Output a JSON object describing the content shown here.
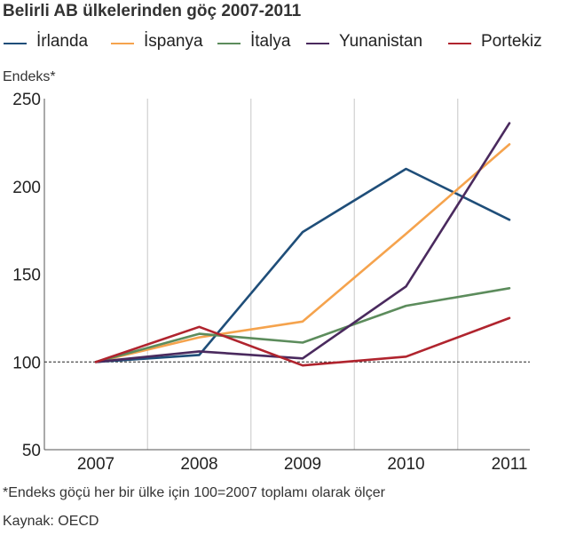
{
  "chart_data": {
    "type": "line",
    "title": "Belirli AB ülkelerinden göç 2007-2011",
    "ylabel": "Endeks*",
    "xlabel": "",
    "x": [
      "2007",
      "2008",
      "2009",
      "2010",
      "2011"
    ],
    "yticks": [
      "250",
      "200",
      "150",
      "100",
      "50"
    ],
    "ylim": [
      50,
      250
    ],
    "reference_line": 100,
    "grid": "vertical",
    "legend_position": "top",
    "series": [
      {
        "name": "İrlanda",
        "color": "#1f4e79",
        "values": [
          100,
          104,
          174,
          210,
          181
        ]
      },
      {
        "name": "İspanya",
        "color": "#f5a34d",
        "values": [
          100,
          114,
          123,
          173,
          224
        ]
      },
      {
        "name": "İtalya",
        "color": "#5c8c5c",
        "values": [
          100,
          116,
          111,
          132,
          142
        ]
      },
      {
        "name": "Yunanistan",
        "color": "#4a2a5e",
        "values": [
          100,
          106,
          102,
          143,
          236
        ]
      },
      {
        "name": "Portekiz",
        "color": "#b0242e",
        "values": [
          100,
          120,
          98,
          103,
          125
        ]
      }
    ],
    "footnote": "*Endeks göçü her bir ülke için 100=2007 toplamı olarak ölçer",
    "source": "Kaynak: OECD"
  }
}
